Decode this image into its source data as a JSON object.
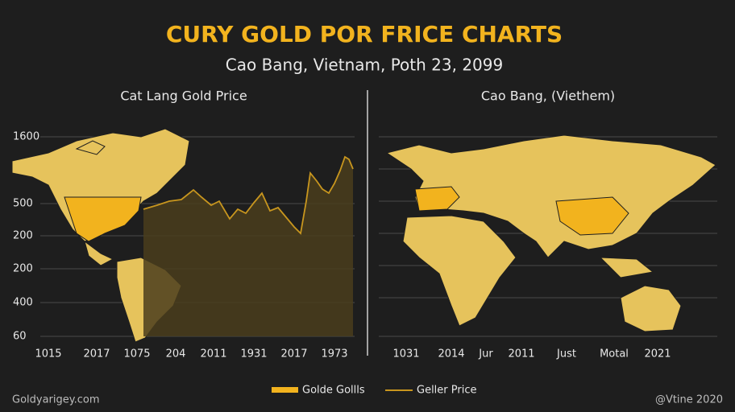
{
  "header": {
    "title": "CURY GOLD POR FRICE CHARTS",
    "subtitle": "Cao Bang, Vietnam, Poth 23, 2099"
  },
  "left_panel": {
    "title": "Cat Lang Gold Price",
    "y_labels": [
      "1600",
      "500",
      "200",
      "200",
      "400",
      "60"
    ],
    "x_labels": [
      "1015",
      "2017",
      "1075",
      "204",
      "2011",
      "1931",
      "2017",
      "1973"
    ]
  },
  "right_panel": {
    "title": "Cao Bang, (Viethem)",
    "x_labels": [
      "1031",
      "2014",
      "Jur",
      "2011",
      "Just",
      "Motal",
      "2021"
    ]
  },
  "legend": [
    "Golde Gollls",
    "Geller Price"
  ],
  "footer": {
    "left": "Goldyarigey.com",
    "right": "@Vtine 2020"
  }
}
